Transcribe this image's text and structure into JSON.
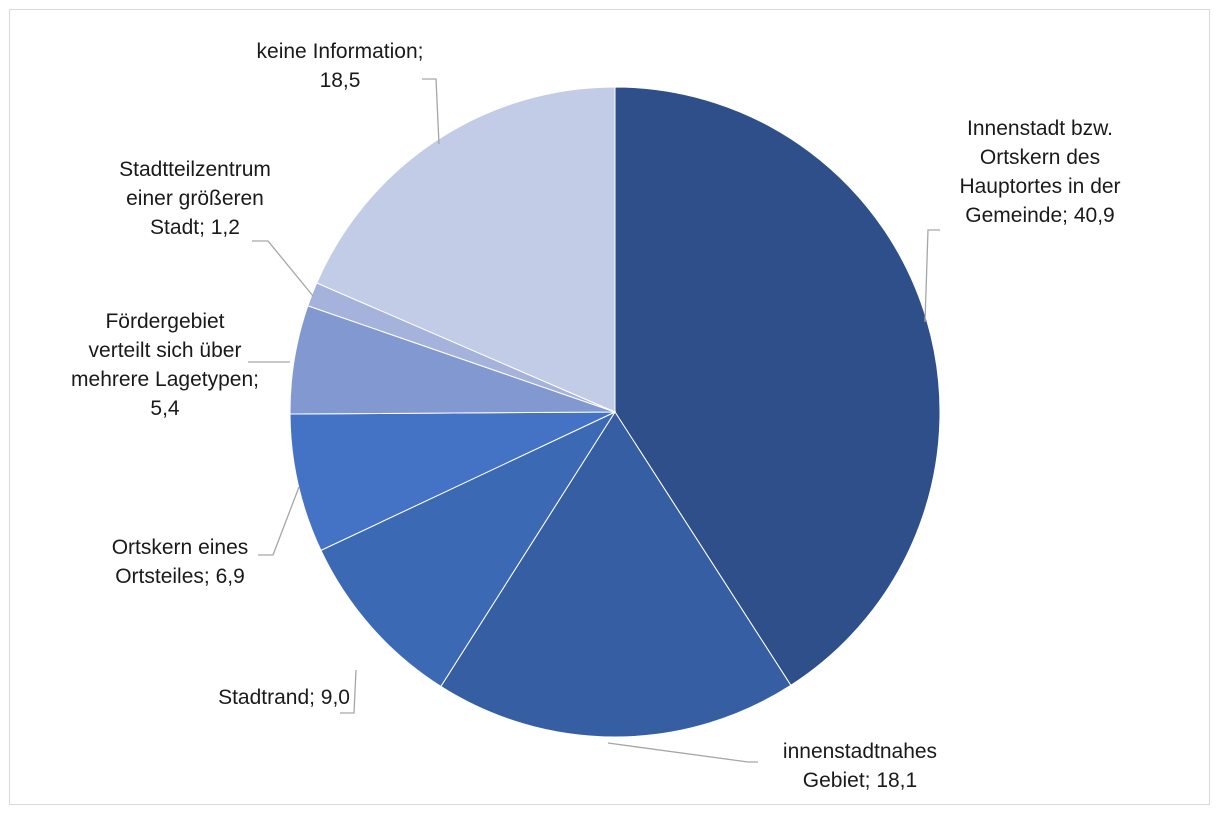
{
  "chart_data": {
    "type": "pie",
    "title": "",
    "start_angle_deg": 0,
    "direction": "clockwise",
    "slices": [
      {
        "label": "Innenstadt bzw.\nOrtskern des\nHauptortes in der\nGemeinde; 40,9",
        "name": "Innenstadt bzw. Ortskern des Hauptortes in der Gemeinde",
        "value": 40.9,
        "color": "#2f4f8a"
      },
      {
        "label": "innenstadtnahes\nGebiet;  18,1",
        "name": "innenstadtnahes Gebiet",
        "value": 18.1,
        "color": "#365ea2"
      },
      {
        "label": "Stadtrand; 9,0",
        "name": "Stadtrand",
        "value": 9.0,
        "color": "#3c69b4"
      },
      {
        "label": "Ortskern eines\nOrtsteiles; 6,9",
        "name": "Ortskern eines Ortsteiles",
        "value": 6.9,
        "color": "#4472c4"
      },
      {
        "label": "Fördergebiet\nverteilt sich über\nmehrere Lagetypen;\n5,4",
        "name": "Fördergebiet verteilt sich über mehrere Lagetypen",
        "value": 5.4,
        "color": "#8198d1"
      },
      {
        "label": "Stadtteilzentrum\neiner größeren\nStadt; 1,2",
        "name": "Stadtteilzentrum einer größeren Stadt",
        "value": 1.2,
        "color": "#a5b3dc"
      },
      {
        "label": "keine Information;\n18,5",
        "name": "keine Information",
        "value": 18.5,
        "color": "#c3cce6"
      }
    ]
  }
}
